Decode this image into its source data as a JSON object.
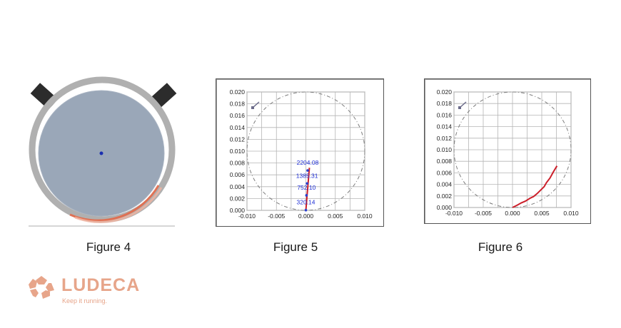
{
  "figure4": {
    "caption": "Figure 4",
    "colors": {
      "housing": "#b0b0b0",
      "shaft": "#9aa7b8",
      "center": "#1a2fb0",
      "trail": "#e36a4a",
      "blocks": "#2c2c2c"
    }
  },
  "figure5": {
    "caption": "Figure 5",
    "annotations": [
      "2204.08",
      "1385.31",
      "752.10",
      "320.14"
    ]
  },
  "figure6": {
    "caption": "Figure 6"
  },
  "logo": {
    "name": "LUDECA",
    "tagline": "Keep it running.",
    "color": "#e7a58a"
  },
  "chart_data": [
    {
      "type": "line",
      "title": "",
      "xlabel": "",
      "ylabel": "",
      "xlim": [
        -0.01,
        0.01
      ],
      "ylim": [
        0.0,
        0.02
      ],
      "x_ticks": [
        "-0.010",
        "-0.005",
        "0.000",
        "0.005",
        "0.010"
      ],
      "y_ticks": [
        "0.000",
        "0.002",
        "0.004",
        "0.006",
        "0.008",
        "0.010",
        "0.012",
        "0.014",
        "0.016",
        "0.018",
        "0.020"
      ],
      "grid": true,
      "reference_circle": {
        "center": [
          0.0,
          0.01
        ],
        "radius": 0.01
      },
      "series": [
        {
          "color": "#cc1f2a",
          "x": [
            0.0,
            0.0001,
            0.0002,
            0.0003,
            0.0004,
            0.0005,
            0.0006
          ],
          "y": [
            0.0,
            0.0012,
            0.0025,
            0.0036,
            0.0048,
            0.006,
            0.0072
          ]
        }
      ],
      "annotations": [
        {
          "text": "2204.08",
          "x": 0.0003,
          "y": 0.0077
        },
        {
          "text": "1385.31",
          "x": 0.0002,
          "y": 0.0055
        },
        {
          "text": "752.10",
          "x": 0.0001,
          "y": 0.0035
        },
        {
          "text": "320.14",
          "x": 0.0,
          "y": 0.001
        }
      ]
    },
    {
      "type": "line",
      "title": "",
      "xlabel": "",
      "ylabel": "",
      "xlim": [
        -0.01,
        0.01
      ],
      "ylim": [
        0.0,
        0.02
      ],
      "x_ticks": [
        "-0.010",
        "-0.005",
        "0.000",
        "0.005",
        "0.010"
      ],
      "y_ticks": [
        "0.000",
        "0.002",
        "0.004",
        "0.006",
        "0.008",
        "0.010",
        "0.012",
        "0.014",
        "0.016",
        "0.018",
        "0.020"
      ],
      "grid": true,
      "reference_circle": {
        "center": [
          0.0,
          0.01
        ],
        "radius": 0.01
      },
      "series": [
        {
          "color": "#cc1f2a",
          "x": [
            0.0,
            0.0008,
            0.0015,
            0.0022,
            0.003,
            0.0036,
            0.0042,
            0.0048,
            0.0054,
            0.0058,
            0.0064,
            0.007,
            0.0076
          ],
          "y": [
            0.0,
            0.0004,
            0.0008,
            0.0011,
            0.0016,
            0.0019,
            0.0024,
            0.003,
            0.0036,
            0.0043,
            0.0051,
            0.0062,
            0.0072
          ]
        }
      ]
    }
  ]
}
